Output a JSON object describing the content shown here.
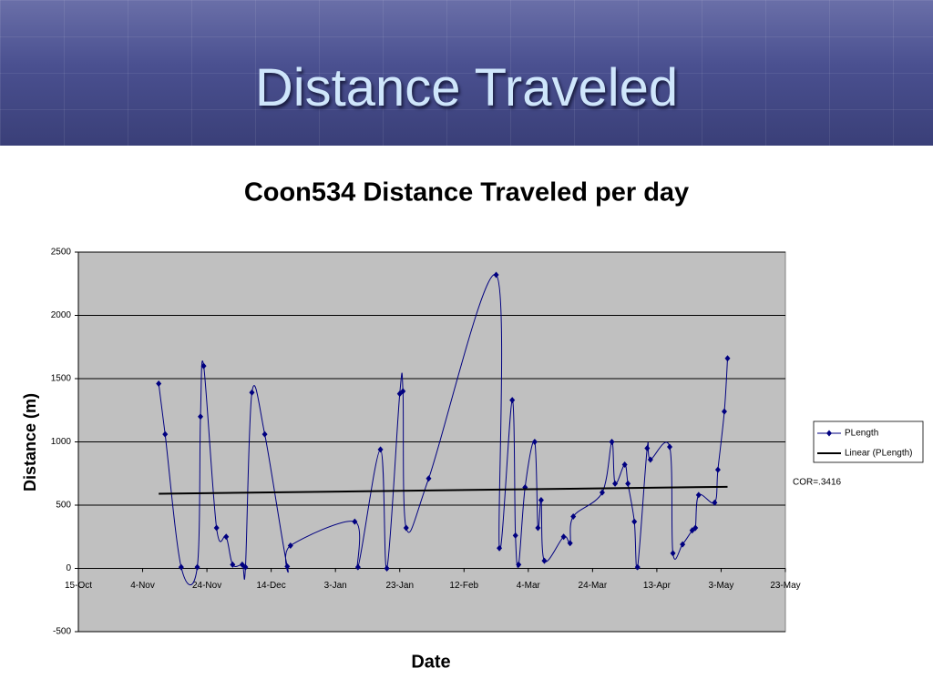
{
  "slide_title": "Distance Traveled",
  "chart_data": {
    "type": "line",
    "title": "Coon534 Distance Traveled per day",
    "xlabel": "Date",
    "ylabel": "Distance (m)",
    "annotation": "COR=.3416",
    "xlim": [
      0,
      220
    ],
    "xticks": [
      {
        "value": 0,
        "label": "15-Oct"
      },
      {
        "value": 20,
        "label": "4-Nov"
      },
      {
        "value": 40,
        "label": "24-Nov"
      },
      {
        "value": 60,
        "label": "14-Dec"
      },
      {
        "value": 80,
        "label": "3-Jan"
      },
      {
        "value": 100,
        "label": "23-Jan"
      },
      {
        "value": 120,
        "label": "12-Feb"
      },
      {
        "value": 140,
        "label": "4-Mar"
      },
      {
        "value": 160,
        "label": "24-Mar"
      },
      {
        "value": 180,
        "label": "13-Apr"
      },
      {
        "value": 200,
        "label": "3-May"
      },
      {
        "value": 220,
        "label": "23-May"
      }
    ],
    "ylim": [
      -500,
      2500
    ],
    "yticks": [
      -500,
      0,
      500,
      1000,
      1500,
      2000,
      2500
    ],
    "grid": true,
    "series": [
      {
        "name": "PLength",
        "color": "#000080",
        "smooth": true,
        "marker": "diamond",
        "x": [
          25,
          27,
          32,
          37,
          38,
          39,
          43,
          46,
          48,
          51,
          52,
          54,
          58,
          65,
          66,
          86,
          87,
          94,
          96,
          100,
          101,
          102,
          109,
          130,
          131,
          135,
          136,
          137,
          139,
          142,
          143,
          144,
          145,
          151,
          153,
          154,
          163,
          166,
          167,
          170,
          171,
          173,
          174,
          177,
          178,
          184,
          185,
          188,
          191,
          192,
          193,
          198,
          199,
          201,
          202
        ],
        "values": [
          1460,
          1060,
          10,
          10,
          1200,
          1600,
          320,
          250,
          30,
          30,
          10,
          1390,
          1060,
          15,
          180,
          370,
          10,
          940,
          0,
          1380,
          1400,
          320,
          710,
          2320,
          160,
          1330,
          260,
          30,
          640,
          1000,
          320,
          540,
          60,
          250,
          200,
          410,
          600,
          1000,
          670,
          820,
          670,
          370,
          10,
          950,
          860,
          960,
          120,
          190,
          300,
          320,
          580,
          520,
          780,
          1240,
          1660
        ]
      },
      {
        "name": "Linear (PLength)",
        "color": "#000000",
        "smooth": false,
        "x": [
          25,
          202
        ],
        "values": [
          590,
          645
        ]
      }
    ]
  }
}
